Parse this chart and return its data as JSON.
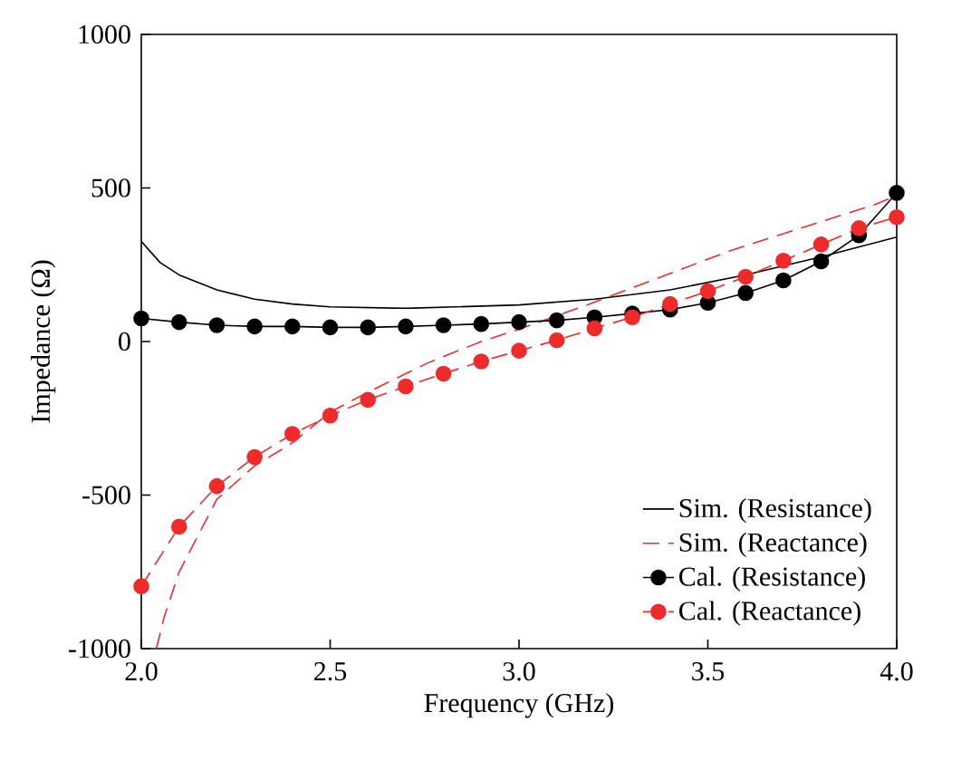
{
  "chart_data": {
    "type": "line",
    "xlabel": "Frequency (GHz)",
    "ylabel": "Impedance (Ω)",
    "xlim": [
      2.0,
      4.0
    ],
    "ylim": [
      -1000,
      1000
    ],
    "xticks": [
      {
        "value": 2.0,
        "label": "2.0"
      },
      {
        "value": 2.5,
        "label": "2.5"
      },
      {
        "value": 3.0,
        "label": "3.0"
      },
      {
        "value": 3.5,
        "label": "3.5"
      },
      {
        "value": 4.0,
        "label": "4.0"
      }
    ],
    "yticks": [
      -1000,
      -500,
      0,
      500,
      1000
    ],
    "grid": false,
    "legend": "bottom right",
    "series": [
      {
        "name": "Sim. (Resistance)",
        "color": "#000000",
        "marker": "none",
        "line_style": "solid",
        "x": [
          2.0,
          2.05,
          2.1,
          2.2,
          2.3,
          2.4,
          2.5,
          2.7,
          3.0,
          3.2,
          3.4,
          3.6,
          3.8,
          4.0
        ],
        "values": [
          326,
          257,
          217,
          168,
          138,
          122,
          113,
          108,
          119,
          138,
          168,
          217,
          276,
          340
        ]
      },
      {
        "name": "Sim. (Reactance)",
        "color": "#ee2a2a",
        "marker": "none",
        "line_style": "dashed",
        "x": [
          2.04,
          2.06,
          2.1,
          2.2,
          2.3,
          2.4,
          2.5,
          2.6,
          2.7,
          2.76,
          2.9,
          3.0,
          3.18,
          3.56,
          3.94,
          4.0
        ],
        "values": [
          -1000,
          -900,
          -751,
          -514,
          -405,
          -330,
          -230,
          -165,
          -105,
          -69,
          0,
          40,
          119,
          296,
          445,
          475
        ]
      },
      {
        "name": "Cal. (Resistance)",
        "color": "#000000",
        "marker": "circle",
        "line_style": "solid",
        "x": [
          2.0,
          2.1,
          2.2,
          2.3,
          2.4,
          2.5,
          2.6,
          2.7,
          2.8,
          2.9,
          3.0,
          3.1,
          3.2,
          3.3,
          3.4,
          3.5,
          3.6,
          3.7,
          3.8,
          3.9,
          4.0
        ],
        "values": [
          75,
          63,
          53,
          49,
          49,
          46,
          46,
          49,
          53,
          57,
          63,
          69,
          79,
          91,
          104,
          126,
          158,
          199,
          261,
          346,
          484
        ]
      },
      {
        "name": "Cal. (Reactance)",
        "color": "#ee2a2a",
        "marker": "circle",
        "line_style": "dashed",
        "x": [
          2.0,
          2.1,
          2.2,
          2.3,
          2.4,
          2.5,
          2.6,
          2.7,
          2.8,
          2.9,
          3.0,
          3.1,
          3.2,
          3.3,
          3.4,
          3.5,
          3.6,
          3.7,
          3.8,
          3.9,
          4.0
        ],
        "values": [
          -797,
          -603,
          -471,
          -376,
          -301,
          -241,
          -190,
          -146,
          -105,
          -65,
          -30,
          4,
          43,
          79,
          122,
          164,
          211,
          263,
          316,
          369,
          405
        ]
      }
    ]
  }
}
